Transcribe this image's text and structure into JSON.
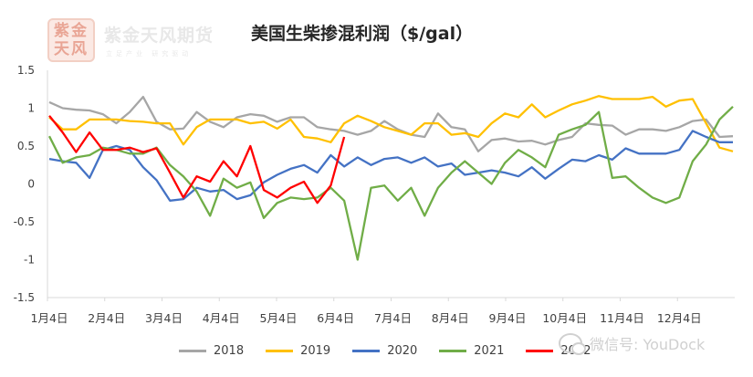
{
  "logo": {
    "seal_text": "紫金天风",
    "name": "紫金天风期货",
    "tagline": "立足产业 研究驱动"
  },
  "watermark": "微信号: YouDock",
  "chart_data": {
    "type": "line",
    "title": "美国生柴掺混利润（$/gal）",
    "xlabel": "",
    "ylabel": "",
    "ylim": [
      -1.5,
      1.5
    ],
    "yticks": [
      "1.5",
      "1",
      "0.5",
      "0",
      "-0.5",
      "-1",
      "-1.5"
    ],
    "xticks": [
      "1月4日",
      "2月4日",
      "3月4日",
      "4月4日",
      "5月4日",
      "6月4日",
      "7月4日",
      "8月4日",
      "9月4日",
      "10月4日",
      "11月4日",
      "12月4日"
    ],
    "grid": false,
    "legend_position": "bottom",
    "series": [
      {
        "name": "2018",
        "color": "#a6a6a6",
        "values": [
          1.08,
          1.0,
          0.98,
          0.97,
          0.92,
          0.8,
          0.95,
          1.15,
          0.82,
          0.72,
          0.73,
          0.95,
          0.82,
          0.75,
          0.88,
          0.92,
          0.9,
          0.82,
          0.88,
          0.88,
          0.75,
          0.72,
          0.7,
          0.65,
          0.7,
          0.83,
          0.72,
          0.65,
          0.62,
          0.93,
          0.75,
          0.72,
          0.43,
          0.58,
          0.6,
          0.56,
          0.57,
          0.52,
          0.58,
          0.62,
          0.8,
          0.78,
          0.77,
          0.65,
          0.72,
          0.72,
          0.7,
          0.75,
          0.83,
          0.85,
          0.62,
          0.63
        ]
      },
      {
        "name": "2019",
        "color": "#ffc000",
        "values": [
          0.88,
          0.72,
          0.72,
          0.85,
          0.85,
          0.85,
          0.83,
          0.82,
          0.8,
          0.8,
          0.52,
          0.75,
          0.85,
          0.85,
          0.85,
          0.8,
          0.82,
          0.73,
          0.85,
          0.62,
          0.6,
          0.55,
          0.8,
          0.9,
          0.83,
          0.75,
          0.7,
          0.65,
          0.8,
          0.8,
          0.65,
          0.67,
          0.62,
          0.8,
          0.93,
          0.88,
          1.05,
          0.88,
          0.97,
          1.05,
          1.1,
          1.16,
          1.12,
          1.12,
          1.12,
          1.15,
          1.02,
          1.1,
          1.12,
          0.8,
          0.48,
          0.43
        ]
      },
      {
        "name": "2020",
        "color": "#4472c4",
        "values": [
          0.33,
          0.3,
          0.28,
          0.08,
          0.45,
          0.5,
          0.45,
          0.22,
          0.05,
          -0.22,
          -0.2,
          -0.05,
          -0.1,
          -0.08,
          -0.2,
          -0.15,
          0.02,
          0.12,
          0.2,
          0.25,
          0.15,
          0.38,
          0.23,
          0.35,
          0.25,
          0.33,
          0.35,
          0.28,
          0.35,
          0.23,
          0.27,
          0.12,
          0.15,
          0.18,
          0.15,
          0.1,
          0.22,
          0.07,
          0.2,
          0.32,
          0.3,
          0.38,
          0.32,
          0.47,
          0.4,
          0.4,
          0.4,
          0.45,
          0.7,
          0.62,
          0.55,
          0.55
        ]
      },
      {
        "name": "2021",
        "color": "#70ad47",
        "values": [
          0.63,
          0.28,
          0.35,
          0.38,
          0.48,
          0.45,
          0.4,
          0.4,
          0.48,
          0.25,
          0.1,
          -0.1,
          -0.42,
          0.07,
          -0.05,
          0.02,
          -0.45,
          -0.25,
          -0.18,
          -0.2,
          -0.18,
          -0.05,
          -0.22,
          -1.0,
          -0.05,
          -0.02,
          -0.22,
          -0.05,
          -0.42,
          -0.05,
          0.15,
          0.3,
          0.15,
          0.0,
          0.28,
          0.45,
          0.35,
          0.22,
          0.65,
          0.72,
          0.78,
          0.95,
          0.08,
          0.1,
          -0.05,
          -0.18,
          -0.25,
          -0.18,
          0.3,
          0.52,
          0.85,
          1.02
        ]
      },
      {
        "name": "2022",
        "color": "#ff0000",
        "values": [
          0.9,
          0.68,
          0.42,
          0.68,
          0.45,
          0.45,
          0.48,
          0.42,
          0.47,
          0.15,
          -0.18,
          0.1,
          0.03,
          0.3,
          0.1,
          0.5,
          -0.08,
          -0.18,
          -0.05,
          0.03,
          -0.25,
          -0.02,
          0.62
        ]
      }
    ]
  }
}
